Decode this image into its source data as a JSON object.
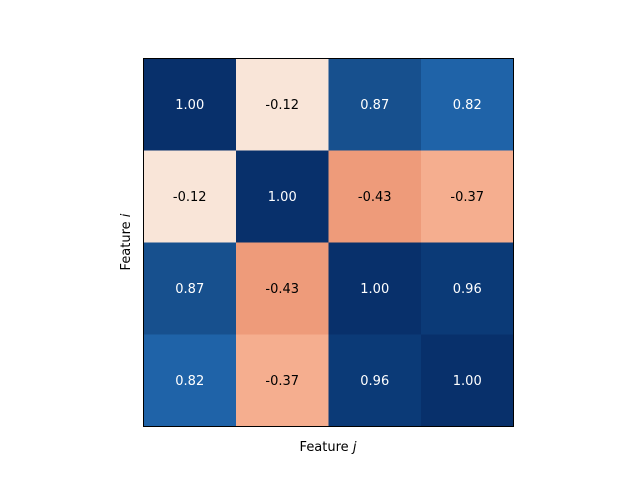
{
  "chart_data": {
    "type": "heatmap",
    "title": "",
    "xlabel_prefix": "Feature ",
    "xlabel_var": "j",
    "ylabel_prefix": "Feature ",
    "ylabel_var": "i",
    "rows": 4,
    "cols": 4,
    "values": [
      [
        1.0,
        -0.12,
        0.87,
        0.82
      ],
      [
        -0.12,
        1.0,
        -0.43,
        -0.37
      ],
      [
        0.87,
        -0.43,
        1.0,
        0.96
      ],
      [
        0.82,
        -0.37,
        0.96,
        1.0
      ]
    ],
    "value_labels": [
      [
        "1.00",
        "-0.12",
        "0.87",
        "0.82"
      ],
      [
        "-0.12",
        "1.00",
        "-0.43",
        "-0.37"
      ],
      [
        "0.87",
        "-0.43",
        "1.00",
        "0.96"
      ],
      [
        "0.82",
        "-0.37",
        "0.96",
        "1.00"
      ]
    ],
    "cell_colors": [
      [
        "#08306b",
        "#f9e5d8",
        "#17508e",
        "#1f63a8"
      ],
      [
        "#f9e5d8",
        "#08306b",
        "#ee9b7a",
        "#f5ae8f"
      ],
      [
        "#17508e",
        "#ee9b7a",
        "#08306b",
        "#0b3a77"
      ],
      [
        "#1f63a8",
        "#f5ae8f",
        "#0b3a77",
        "#08306b"
      ]
    ],
    "colormap": "RdBu",
    "vmin": -1,
    "vmax": 1,
    "ticks_visible": false,
    "grid": false,
    "legend": "none"
  }
}
